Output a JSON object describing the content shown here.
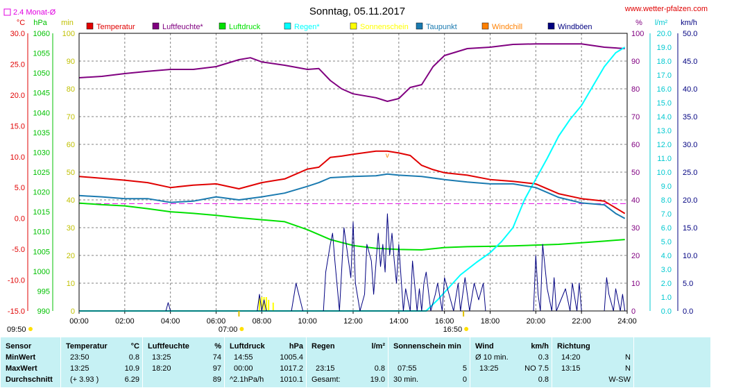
{
  "header": {
    "title": "Sonntag, 05.11.2017",
    "website": "www.wetter-pfalzen.com",
    "monthly_avg_label": "2.4 Monat-Ø"
  },
  "unit_labels": {
    "temp": "°C",
    "pressure": "hPa",
    "minutes": "min",
    "humidity": "%",
    "rain": "l/m²",
    "wind": "km/h"
  },
  "legend": [
    {
      "label": "Temperatur",
      "color": "#e00000"
    },
    {
      "label": "Luftfeuchte*",
      "color": "#800080"
    },
    {
      "label": "Luftdruck",
      "color": "#00e000"
    },
    {
      "label": "Regen*",
      "color": "#00ffff"
    },
    {
      "label": "Sonnenschein",
      "color": "#ffff00"
    },
    {
      "label": "Taupunkt",
      "color": "#1a7ab0"
    },
    {
      "label": "Windchill",
      "color": "#ff8000"
    },
    {
      "label": "Windböen",
      "color": "#000080"
    }
  ],
  "axes": {
    "temp_ticks": [
      "30.0",
      "25.0",
      "20.0",
      "15.0",
      "10.0",
      "5.0",
      "0.0",
      "-5.0",
      "-10.0",
      "-15.0"
    ],
    "pressure_ticks": [
      "1060",
      "1055",
      "1050",
      "1045",
      "1040",
      "1035",
      "1030",
      "1025",
      "1020",
      "1015",
      "1010",
      "1005",
      "1000",
      "995",
      "990"
    ],
    "minutes_ticks": [
      "100",
      "90",
      "80",
      "70",
      "60",
      "50",
      "40",
      "30",
      "20",
      "10",
      "0"
    ],
    "humidity_ticks": [
      "100",
      "90",
      "80",
      "70",
      "60",
      "50",
      "40",
      "30",
      "20",
      "10",
      "0"
    ],
    "rain_ticks": [
      "20.0",
      "19.0",
      "18.0",
      "17.0",
      "16.0",
      "15.0",
      "14.0",
      "13.0",
      "12.0",
      "11.0",
      "10.0",
      "9.0",
      "8.0",
      "7.0",
      "6.0",
      "5.0",
      "4.0",
      "3.0",
      "2.0",
      "1.0",
      "0.0"
    ],
    "wind_ticks": [
      "50.0",
      "45.0",
      "40.0",
      "35.0",
      "30.0",
      "25.0",
      "20.0",
      "15.0",
      "10.0",
      "5.0",
      "0.0"
    ],
    "x_ticks": [
      "00:00",
      "02:00",
      "04:00",
      "06:00",
      "08:00",
      "10:00",
      "12:00",
      "14:00",
      "16:00",
      "18:00",
      "20:00",
      "22:00",
      "24:00"
    ]
  },
  "sun_markers": {
    "sunrise": "07:00",
    "sunset": "16:50",
    "sunshine_start": "09:50"
  },
  "chart_data": {
    "type": "line",
    "x_unit": "hours",
    "xlim": [
      0,
      24
    ],
    "grid": true,
    "legend_position": "top",
    "monthly_average_temp": 2.4,
    "series": [
      {
        "name": "Temperatur",
        "axis": "°C",
        "ylim": [
          -15,
          30
        ],
        "x": [
          0,
          1,
          2,
          3,
          4,
          5,
          6,
          7,
          8,
          8.5,
          9,
          10,
          10.5,
          11,
          11.5,
          12,
          13,
          13.5,
          14,
          14.5,
          15,
          15.5,
          16,
          17,
          18,
          19,
          20,
          21,
          22,
          23,
          23.5,
          23.9
        ],
        "values": [
          6.8,
          6.5,
          6.2,
          5.8,
          5.0,
          5.4,
          5.6,
          4.8,
          5.8,
          6.1,
          6.4,
          8.0,
          8.3,
          9.9,
          10.1,
          10.4,
          10.9,
          10.9,
          10.6,
          10.2,
          8.6,
          7.9,
          7.4,
          7.0,
          6.3,
          6.0,
          5.6,
          4.0,
          3.2,
          2.8,
          1.7,
          0.8
        ]
      },
      {
        "name": "Luftfeuchte*",
        "axis": "%",
        "ylim": [
          0,
          100
        ],
        "x": [
          0,
          1,
          2,
          3,
          4,
          5,
          6,
          7,
          7.5,
          8,
          9,
          10,
          10.5,
          11,
          11.5,
          12,
          13,
          13.5,
          14,
          14.5,
          15,
          15.5,
          16,
          17,
          18,
          19,
          20,
          21,
          22,
          23,
          23.9
        ],
        "values": [
          84,
          84.5,
          85.5,
          86.3,
          87,
          87,
          88,
          90.5,
          91.2,
          89.7,
          88.5,
          87,
          87.3,
          83,
          80,
          78.2,
          76.8,
          75.5,
          76.5,
          80.5,
          81.5,
          88,
          92,
          94.5,
          95,
          96,
          96.2,
          96.2,
          96.2,
          95,
          94.5
        ]
      },
      {
        "name": "Luftdruck",
        "axis": "hPa",
        "ylim": [
          990,
          1060
        ],
        "x": [
          0,
          1,
          2,
          3,
          4,
          5,
          6,
          7,
          8,
          9,
          10,
          11,
          12,
          13,
          14,
          15,
          16,
          17,
          18,
          19,
          20,
          21,
          22,
          23,
          23.9
        ],
        "values": [
          1017.2,
          1016.8,
          1016.5,
          1015.8,
          1015.0,
          1014.6,
          1014.1,
          1013.5,
          1013.0,
          1012.5,
          1010.5,
          1008.0,
          1006.5,
          1005.8,
          1005.5,
          1005.4,
          1006.0,
          1006.2,
          1006.3,
          1006.4,
          1006.6,
          1006.8,
          1007.2,
          1007.6,
          1008.0
        ]
      },
      {
        "name": "Regen*",
        "axis": "l/m²",
        "ylim": [
          0,
          20
        ],
        "x": [
          0,
          15.2,
          15.7,
          16.2,
          16.7,
          17.4,
          18.0,
          18.5,
          19.0,
          19.5,
          20.0,
          20.5,
          21.0,
          21.5,
          22.0,
          22.5,
          23.0,
          23.5,
          23.9
        ],
        "values": [
          0,
          0,
          0.8,
          1.7,
          2.6,
          3.5,
          4.2,
          5.0,
          6.0,
          8.0,
          9.5,
          11.0,
          12.6,
          13.8,
          14.8,
          16.2,
          17.6,
          18.6,
          19.0
        ]
      },
      {
        "name": "Sonnenschein",
        "axis": "min",
        "ylim": [
          0,
          100
        ],
        "x": [
          7.9,
          8.0,
          8.1,
          8.2,
          8.3,
          8.5
        ],
        "values": [
          5,
          5,
          5,
          5,
          4,
          3
        ]
      },
      {
        "name": "Taupunkt",
        "axis": "°C",
        "ylim": [
          -15,
          30
        ],
        "x": [
          0,
          1,
          2,
          3,
          4,
          5,
          6,
          7,
          8,
          9,
          10,
          10.5,
          11,
          11.5,
          12,
          13,
          13.5,
          14,
          15,
          16,
          17,
          18,
          19,
          20,
          21,
          22,
          23,
          23.5,
          23.9
        ],
        "values": [
          3.7,
          3.5,
          3.2,
          3.2,
          2.6,
          2.8,
          3.5,
          3.0,
          3.5,
          4.1,
          5.2,
          5.8,
          6.6,
          6.7,
          6.8,
          6.9,
          7.2,
          7.0,
          6.8,
          6.3,
          5.9,
          5.6,
          5.6,
          5.0,
          3.4,
          2.5,
          2.2,
          0.8,
          0.0
        ]
      },
      {
        "name": "Windchill",
        "axis": "°C",
        "ylim": [
          -15,
          30
        ],
        "x": [
          13.5
        ],
        "values": [
          10.3
        ]
      },
      {
        "name": "Windböen",
        "axis": "km/h",
        "ylim": [
          0,
          50
        ],
        "x": [
          0,
          3.8,
          3.9,
          4.0,
          7.8,
          7.9,
          8.0,
          8.1,
          8.2,
          9.3,
          9.5,
          9.8,
          10.5,
          10.7,
          10.8,
          11.0,
          11.1,
          11.2,
          11.4,
          11.6,
          11.7,
          11.9,
          12.0,
          12.1,
          12.3,
          12.5,
          12.6,
          12.8,
          12.9,
          13.1,
          13.2,
          13.3,
          13.4,
          13.5,
          13.6,
          13.7,
          13.8,
          13.9,
          14.0,
          14.2,
          14.3,
          14.5,
          14.6,
          14.8,
          14.9,
          15.0,
          15.1,
          15.2,
          15.4,
          15.6,
          15.7,
          15.9,
          16.0,
          16.2,
          16.4,
          16.6,
          16.7,
          16.9,
          17.1,
          17.3,
          17.5,
          17.7,
          17.8,
          18.0,
          19.9,
          20.0,
          20.1,
          20.2,
          20.3,
          20.5,
          20.7,
          20.8,
          20.9,
          21.1,
          21.3,
          21.5,
          21.6,
          21.8,
          21.9,
          22.0,
          23.0,
          23.1,
          23.2,
          23.4,
          23.5,
          23.7,
          23.8,
          23.9
        ],
        "values": [
          0,
          0,
          1.5,
          0,
          0,
          3.0,
          0,
          2.0,
          0,
          0,
          5.0,
          0,
          0,
          0,
          7.0,
          12.0,
          14.0,
          9.0,
          0,
          15.0,
          12.0,
          6.0,
          16.0,
          5.0,
          0,
          3.0,
          12.0,
          9.0,
          3.0,
          14.0,
          8.0,
          12.0,
          7.0,
          17.5,
          10.0,
          14.0,
          9.0,
          5.0,
          12.0,
          0,
          4.0,
          0,
          9.0,
          0,
          4.0,
          0,
          5.0,
          7.0,
          0,
          3.0,
          5.0,
          0,
          6.0,
          3.0,
          0,
          5.0,
          0,
          6.0,
          0,
          5.0,
          2.0,
          5.0,
          0,
          0,
          0,
          10.0,
          3.0,
          0,
          12.0,
          4.0,
          0,
          6.0,
          0,
          2.0,
          4.0,
          0,
          5.0,
          0,
          5.0,
          0,
          0,
          6.0,
          3.0,
          0,
          4.0,
          0,
          3.0,
          0
        ]
      }
    ],
    "stats": {
      "headers": [
        "Sensor",
        "Temperatur",
        "°C",
        "Luftfeuchte",
        "%",
        "Luftdruck",
        "hPa",
        "Regen",
        "l/m²",
        "Sonnenschein min",
        "Wind",
        "km/h",
        "Richtung"
      ],
      "row_labels": [
        "MinWert",
        "MaxWert",
        "Durchschnitt"
      ],
      "temperature": {
        "min_time": "23:50",
        "min": "0.8",
        "max_time": "13:25",
        "max": "10.9",
        "avg_trend": "(+ 3.93 )",
        "avg": "6.29"
      },
      "humidity": {
        "min_time": "13:25",
        "min": "74",
        "max_time": "18:20",
        "max": "97",
        "avg": "89"
      },
      "pressure": {
        "min_time": "14:55",
        "min": "1005.4",
        "max_time": "00:00",
        "max": "1017.2",
        "avg_trend": "^2.1hPa/h",
        "avg": "1010.1"
      },
      "rain": {
        "max_time": "23:15",
        "max": "0.8",
        "total_label": "Gesamt:",
        "total": "19.0"
      },
      "sunshine": {
        "max_time": "07:55",
        "max": "5",
        "avg_label": "30 min.",
        "avg": "0"
      },
      "wind": {
        "min_label": "Ø 10 min.",
        "min": "0.3",
        "max_time": "13:25",
        "max_dir": "NO 7.5",
        "avg": "0.8"
      },
      "direction": {
        "min_time": "14:20",
        "min": "N",
        "max_time": "13:15",
        "max": "N",
        "avg": "W-SW"
      }
    }
  }
}
